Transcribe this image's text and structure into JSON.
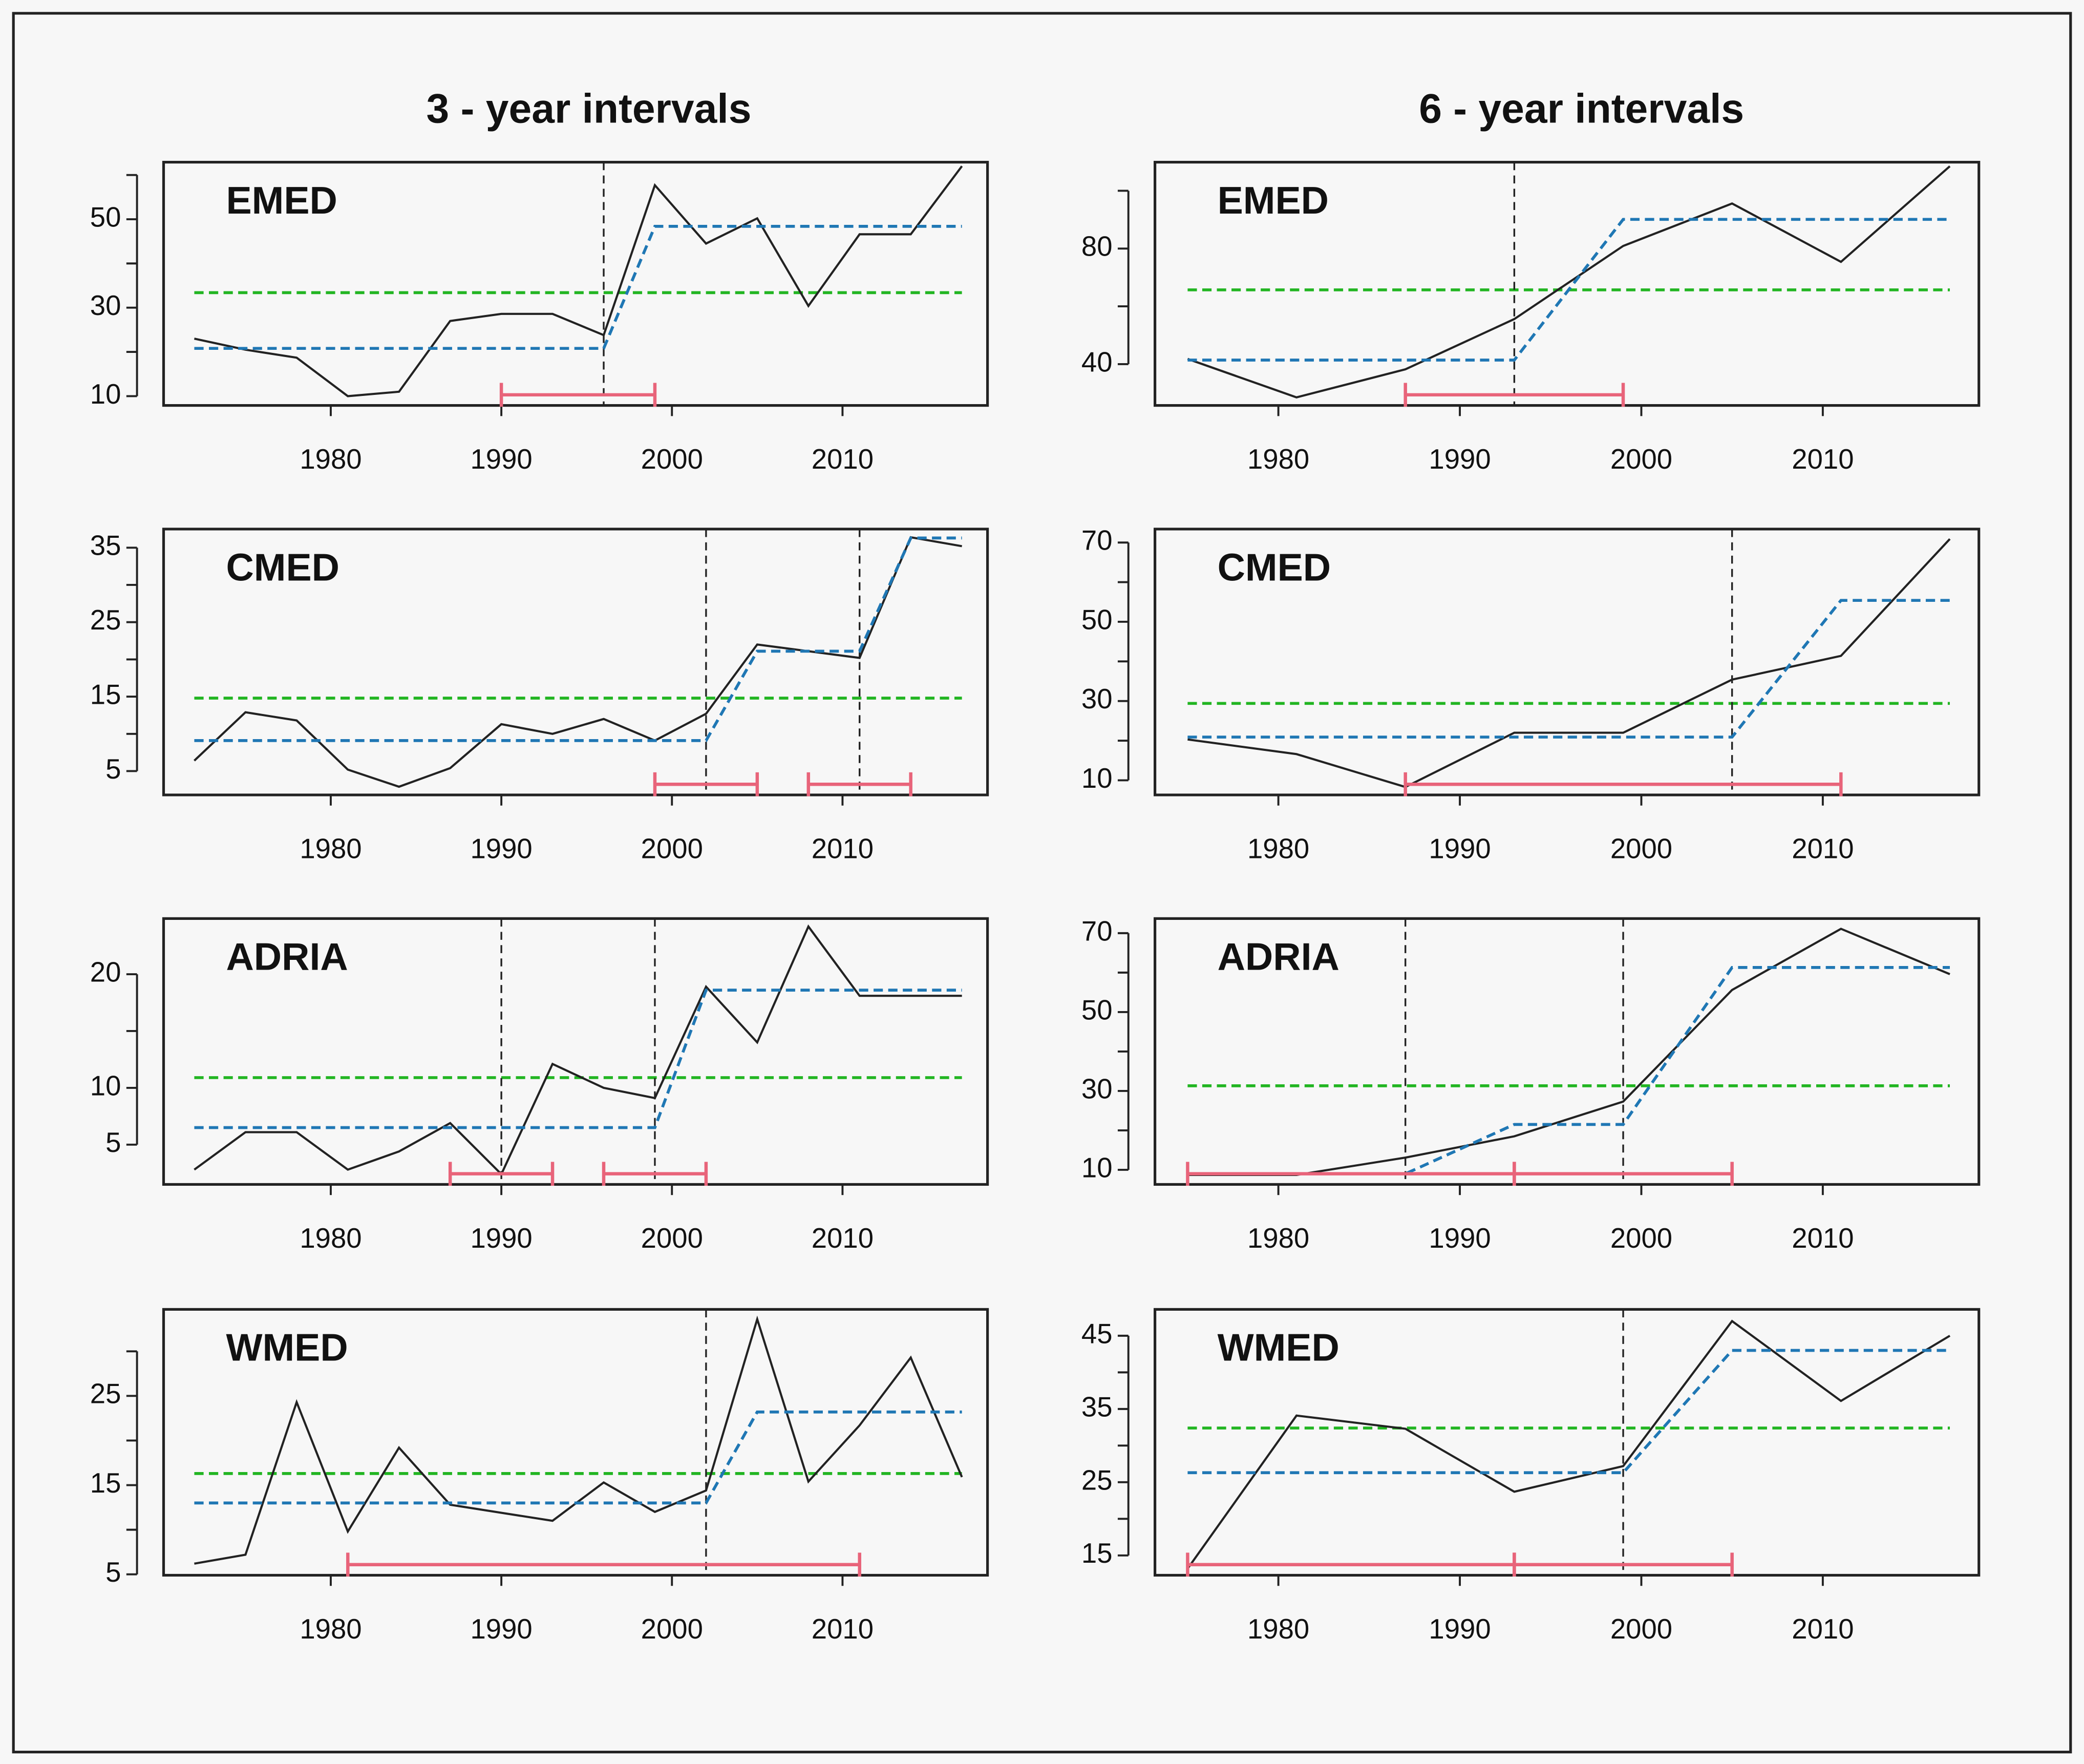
{
  "column_titles": [
    "3 - year intervals",
    "6 - year intervals"
  ],
  "chart_data": [
    {
      "type": "line",
      "title": "EMED",
      "x": [
        1972,
        1975,
        1978,
        1981,
        1984,
        1987,
        1990,
        1993,
        1996,
        1999,
        2002,
        2005,
        2008,
        2011,
        2014,
        2017
      ],
      "xlim": [
        1970.2,
        2018.5
      ],
      "xticks": [
        1980,
        1990,
        2000,
        2010
      ],
      "ylim": [
        7.9,
        62.9
      ],
      "yticks": [
        10,
        30,
        50
      ],
      "minor_yticks": [
        20,
        40,
        60
      ],
      "series": [
        {
          "color": "#222222",
          "style": "solid",
          "values": [
            23,
            20.5,
            18.7,
            10,
            11,
            27,
            28.6,
            28.6,
            23.8,
            57.7,
            44.5,
            50.2,
            30.4,
            46.6,
            46.6,
            62
          ]
        },
        {
          "color": "#1f77b4",
          "style": "dashed",
          "values": [
            20.8,
            20.8,
            20.8,
            20.8,
            20.8,
            20.8,
            20.8,
            20.8,
            20.8,
            48.4,
            48.4,
            48.4,
            48.4,
            48.4,
            48.4,
            48.4
          ]
        }
      ],
      "mean": {
        "value": 33.4,
        "color": "#22b522"
      },
      "breakpoints": [
        1996
      ],
      "intervals": [
        [
          1990,
          1999
        ]
      ],
      "interval_color": "#e8647a"
    },
    {
      "type": "line",
      "title": "CMED",
      "x": [
        1972,
        1975,
        1978,
        1981,
        1984,
        1987,
        1990,
        1993,
        1996,
        1999,
        2002,
        2005,
        2008,
        2011,
        2014,
        2017
      ],
      "xlim": [
        1970.2,
        2018.5
      ],
      "xticks": [
        1980,
        1990,
        2000,
        2010
      ],
      "ylim": [
        1.8,
        37.5
      ],
      "yticks": [
        5,
        15,
        25,
        35
      ],
      "minor_yticks": [
        10,
        20,
        30
      ],
      "series": [
        {
          "color": "#222222",
          "style": "solid",
          "values": [
            6.4,
            12.9,
            11.8,
            5.2,
            2.9,
            5.4,
            11.3,
            10,
            12,
            9.1,
            12.7,
            22,
            21.1,
            20.2,
            36.4,
            35.2
          ]
        },
        {
          "color": "#1f77b4",
          "style": "dashed",
          "values": [
            9.1,
            9.1,
            9.1,
            9.1,
            9.1,
            9.1,
            9.1,
            9.1,
            9.1,
            9.1,
            9.1,
            21.1,
            21.1,
            21.1,
            36.3,
            36.3
          ]
        }
      ],
      "mean": {
        "value": 14.8,
        "color": "#22b522"
      },
      "breakpoints": [
        2002,
        2011
      ],
      "intervals": [
        [
          1999,
          2005
        ],
        [
          2008,
          2014
        ]
      ],
      "interval_color": "#e8647a"
    },
    {
      "type": "line",
      "title": "ADRIA",
      "x": [
        1972,
        1975,
        1978,
        1981,
        1984,
        1987,
        1990,
        1993,
        1996,
        1999,
        2002,
        2005,
        2008,
        2011,
        2014,
        2017
      ],
      "xlim": [
        1970.2,
        2018.5
      ],
      "xticks": [
        1980,
        1990,
        2000,
        2010
      ],
      "ylim": [
        1.5,
        24.9
      ],
      "yticks": [
        5,
        10,
        20
      ],
      "minor_yticks": [
        15
      ],
      "series": [
        {
          "color": "#222222",
          "style": "solid",
          "values": [
            2.8,
            6.1,
            6.1,
            2.8,
            4.4,
            6.9,
            2.4,
            12.1,
            10,
            9.1,
            18.9,
            14,
            24.2,
            18.1,
            18.1,
            18.1
          ]
        },
        {
          "color": "#1f77b4",
          "style": "dashed",
          "values": [
            6.5,
            6.5,
            6.5,
            6.5,
            6.5,
            6.5,
            6.5,
            6.5,
            6.5,
            6.5,
            18.6,
            18.6,
            18.6,
            18.6,
            18.6,
            18.6
          ]
        }
      ],
      "mean": {
        "value": 10.9,
        "color": "#22b522"
      },
      "breakpoints": [
        1990,
        1999
      ],
      "intervals": [
        [
          1987,
          1993
        ],
        [
          1996,
          2002
        ]
      ],
      "interval_color": "#e8647a"
    },
    {
      "type": "line",
      "title": "WMED",
      "x": [
        1972,
        1975,
        1978,
        1981,
        1984,
        1987,
        1990,
        1993,
        1996,
        1999,
        2002,
        2005,
        2008,
        2011,
        2014,
        2017
      ],
      "xlim": [
        1970.2,
        2018.5
      ],
      "xticks": [
        1980,
        1990,
        2000,
        2010
      ],
      "ylim": [
        4.9,
        34.7
      ],
      "yticks": [
        5,
        15,
        25
      ],
      "minor_yticks": [
        10,
        20,
        30
      ],
      "series": [
        {
          "color": "#222222",
          "style": "solid",
          "values": [
            6.2,
            7.2,
            24.3,
            9.8,
            19.2,
            12.8,
            11.9,
            11,
            15.3,
            12,
            14.4,
            33.6,
            15.4,
            21.7,
            29.3,
            15.9
          ]
        },
        {
          "color": "#1f77b4",
          "style": "dashed",
          "values": [
            13,
            13,
            13,
            13,
            13,
            13,
            13,
            13,
            13,
            13,
            13,
            23.2,
            23.2,
            23.2,
            23.2,
            23.2
          ]
        }
      ],
      "mean": {
        "value": 16.3,
        "color": "#22b522"
      },
      "breakpoints": [
        2002
      ],
      "intervals": [
        [
          1981,
          2011
        ]
      ],
      "interval_color": "#e8647a"
    },
    {
      "type": "line",
      "title": "EMED",
      "x": [
        1975,
        1981,
        1987,
        1993,
        1999,
        2005,
        2011,
        2017
      ],
      "xlim": [
        1973.2,
        2018.6
      ],
      "xticks": [
        1980,
        1990,
        2000,
        2010
      ],
      "ylim": [
        25.7,
        109.9
      ],
      "yticks": [
        40,
        80
      ],
      "minor_yticks": [
        60,
        100
      ],
      "series": [
        {
          "color": "#222222",
          "style": "solid",
          "values": [
            41.8,
            28.5,
            38.2,
            55.6,
            80.9,
            95.6,
            75.4,
            108.5
          ]
        },
        {
          "color": "#1f77b4",
          "style": "dashed",
          "values": [
            41.4,
            41.4,
            41.4,
            41.4,
            90.1,
            90.1,
            90.1,
            90.1
          ]
        }
      ],
      "mean": {
        "value": 65.7,
        "color": "#22b522"
      },
      "breakpoints": [
        1993
      ],
      "intervals": [
        [
          1987,
          1999
        ]
      ],
      "interval_color": "#e8647a"
    },
    {
      "type": "line",
      "title": "CMED",
      "x": [
        1975,
        1981,
        1987,
        1993,
        1999,
        2005,
        2011,
        2017
      ],
      "xlim": [
        1973.2,
        2018.6
      ],
      "xticks": [
        1980,
        1990,
        2000,
        2010
      ],
      "ylim": [
        6.3,
        73.4
      ],
      "yticks": [
        10,
        30,
        50,
        70
      ],
      "minor_yticks": [
        20,
        40,
        60
      ],
      "series": [
        {
          "color": "#222222",
          "style": "solid",
          "values": [
            20.3,
            16.6,
            8.3,
            22,
            22,
            35.4,
            41.4,
            70.9
          ]
        },
        {
          "color": "#1f77b4",
          "style": "dashed",
          "values": [
            20.9,
            20.9,
            20.9,
            20.9,
            20.9,
            20.9,
            55.4,
            55.4
          ]
        }
      ],
      "mean": {
        "value": 29.4,
        "color": "#22b522"
      },
      "breakpoints": [
        2005
      ],
      "intervals": [
        [
          1987,
          2011
        ]
      ],
      "interval_color": "#e8647a"
    },
    {
      "type": "line",
      "title": "ADRIA",
      "x": [
        1975,
        1981,
        1987,
        1993,
        1999,
        2005,
        2011,
        2017
      ],
      "xlim": [
        1973.2,
        2018.6
      ],
      "xticks": [
        1980,
        1990,
        2000,
        2010
      ],
      "ylim": [
        6.3,
        73.7
      ],
      "yticks": [
        10,
        30,
        50,
        70
      ],
      "minor_yticks": [
        20,
        40,
        60
      ],
      "series": [
        {
          "color": "#222222",
          "style": "solid",
          "values": [
            8.7,
            8.7,
            13.1,
            18.5,
            27.3,
            55.6,
            71.1,
            59.6
          ]
        },
        {
          "color": "#1f77b4",
          "style": "dashed",
          "values": [
            9,
            9,
            9,
            21.5,
            21.5,
            61.3,
            61.3,
            61.3
          ]
        }
      ],
      "mean": {
        "value": 31.3,
        "color": "#22b522"
      },
      "breakpoints": [
        1987,
        1999
      ],
      "intervals": [
        [
          1975,
          1993
        ],
        [
          1993,
          2005
        ]
      ],
      "interval_color": "#e8647a"
    },
    {
      "type": "line",
      "title": "WMED",
      "x": [
        1975,
        1981,
        1987,
        1993,
        1999,
        2005,
        2011,
        2017
      ],
      "xlim": [
        1973.2,
        2018.6
      ],
      "xticks": [
        1980,
        1990,
        2000,
        2010
      ],
      "ylim": [
        12.3,
        48.6
      ],
      "yticks": [
        15,
        25,
        35,
        45
      ],
      "minor_yticks": [
        20,
        30,
        40
      ],
      "series": [
        {
          "color": "#222222",
          "style": "solid",
          "values": [
            13.2,
            34.1,
            32.3,
            23.7,
            27.2,
            47,
            36.1,
            45
          ]
        },
        {
          "color": "#1f77b4",
          "style": "dashed",
          "values": [
            26.3,
            26.3,
            26.3,
            26.3,
            26.3,
            43,
            43,
            43
          ]
        }
      ],
      "mean": {
        "value": 32.4,
        "color": "#22b522"
      },
      "breakpoints": [
        1999
      ],
      "intervals": [
        [
          1975,
          1993
        ],
        [
          1993,
          2005
        ]
      ],
      "interval_color": "#e8647a"
    }
  ]
}
